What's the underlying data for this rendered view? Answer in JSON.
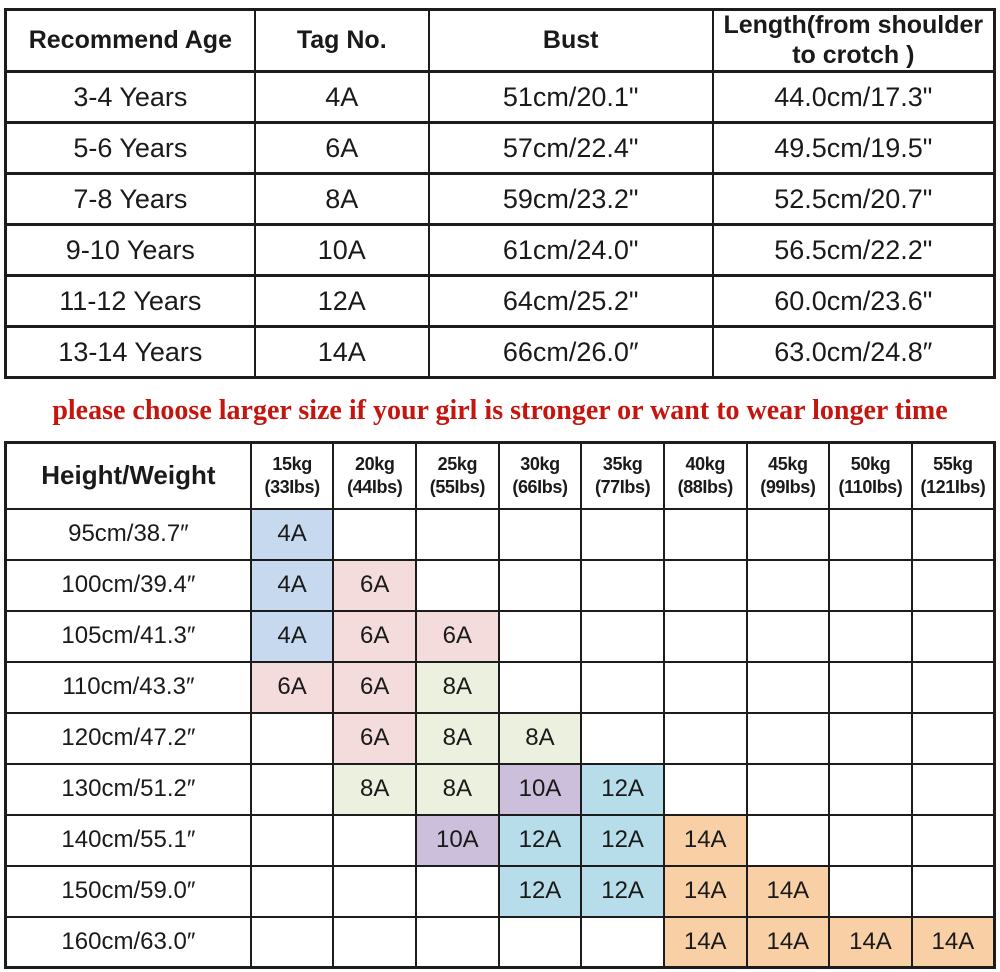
{
  "size_table": {
    "headers": [
      "Recommend Age",
      "Tag No.",
      "Bust",
      "Length(from shoulder to crotch )"
    ],
    "rows": [
      [
        "3-4 Years",
        "4A",
        "51cm/20.1\"",
        "44.0cm/17.3\""
      ],
      [
        "5-6 Years",
        "6A",
        "57cm/22.4\"",
        "49.5cm/19.5\""
      ],
      [
        "7-8 Years",
        "8A",
        "59cm/23.2\"",
        "52.5cm/20.7\""
      ],
      [
        "9-10 Years",
        "10A",
        "61cm/24.0\"",
        "56.5cm/22.2\""
      ],
      [
        "11-12 Years",
        "12A",
        "64cm/25.2\"",
        "60.0cm/23.6\""
      ],
      [
        "13-14 Years",
        "14A",
        "66cm/26.0″",
        "63.0cm/24.8″"
      ]
    ]
  },
  "note": {
    "text": "please choose larger size if your girl is stronger or want to wear longer time",
    "color": "#c4150f"
  },
  "matrix_table": {
    "corner_header": "Height/Weight",
    "weights": [
      {
        "kg": "15kg",
        "lbs": "(33Ibs)"
      },
      {
        "kg": "20kg",
        "lbs": "(44Ibs)"
      },
      {
        "kg": "25kg",
        "lbs": "(55Ibs)"
      },
      {
        "kg": "30kg",
        "lbs": "(66Ibs)"
      },
      {
        "kg": "35kg",
        "lbs": "(77Ibs)"
      },
      {
        "kg": "40kg",
        "lbs": "(88Ibs)"
      },
      {
        "kg": "45kg",
        "lbs": "(99Ibs)"
      },
      {
        "kg": "50kg",
        "lbs": "(110Ibs)"
      },
      {
        "kg": "55kg",
        "lbs": "(121Ibs)"
      }
    ],
    "rows": [
      {
        "height": "95cm/38.7″",
        "cells": [
          {
            "t": "4A",
            "c": "blue"
          },
          null,
          null,
          null,
          null,
          null,
          null,
          null,
          null
        ]
      },
      {
        "height": "100cm/39.4″",
        "cells": [
          {
            "t": "4A",
            "c": "blue"
          },
          {
            "t": "6A",
            "c": "pink"
          },
          null,
          null,
          null,
          null,
          null,
          null,
          null
        ]
      },
      {
        "height": "105cm/41.3″",
        "cells": [
          {
            "t": "4A",
            "c": "blue"
          },
          {
            "t": "6A",
            "c": "pink"
          },
          {
            "t": "6A",
            "c": "pink"
          },
          null,
          null,
          null,
          null,
          null,
          null
        ]
      },
      {
        "height": "110cm/43.3″",
        "cells": [
          {
            "t": "6A",
            "c": "pink"
          },
          {
            "t": "6A",
            "c": "pink"
          },
          {
            "t": "8A",
            "c": "green"
          },
          null,
          null,
          null,
          null,
          null,
          null
        ]
      },
      {
        "height": "120cm/47.2″",
        "cells": [
          null,
          {
            "t": "6A",
            "c": "pink"
          },
          {
            "t": "8A",
            "c": "green"
          },
          {
            "t": "8A",
            "c": "green"
          },
          null,
          null,
          null,
          null,
          null
        ]
      },
      {
        "height": "130cm/51.2″",
        "cells": [
          null,
          {
            "t": "8A",
            "c": "green"
          },
          {
            "t": "8A",
            "c": "green"
          },
          {
            "t": "10A",
            "c": "purple"
          },
          {
            "t": "12A",
            "c": "cyan"
          },
          null,
          null,
          null,
          null
        ]
      },
      {
        "height": "140cm/55.1″",
        "cells": [
          null,
          null,
          {
            "t": "10A",
            "c": "purple"
          },
          {
            "t": "12A",
            "c": "cyan"
          },
          {
            "t": "12A",
            "c": "cyan"
          },
          {
            "t": "14A",
            "c": "orange"
          },
          null,
          null,
          null
        ]
      },
      {
        "height": "150cm/59.0″",
        "cells": [
          null,
          null,
          null,
          {
            "t": "12A",
            "c": "cyan"
          },
          {
            "t": "12A",
            "c": "cyan"
          },
          {
            "t": "14A",
            "c": "orange"
          },
          {
            "t": "14A",
            "c": "orange"
          },
          null,
          null
        ]
      },
      {
        "height": "160cm/63.0″",
        "cells": [
          null,
          null,
          null,
          null,
          null,
          {
            "t": "14A",
            "c": "orange"
          },
          {
            "t": "14A",
            "c": "orange"
          },
          {
            "t": "14A",
            "c": "orange"
          },
          {
            "t": "14A",
            "c": "orange"
          }
        ]
      }
    ]
  },
  "colors": {
    "blue": "#c6d9ee",
    "pink": "#f4dbdc",
    "green": "#ebf1de",
    "purple": "#cbbfdb",
    "cyan": "#b6dde9",
    "orange": "#f9d0a6",
    "border": "#1c1c1c",
    "note_red": "#c4150f"
  },
  "chart_data": [
    {
      "type": "table",
      "title": "Recommend age size table",
      "columns": [
        "Recommend Age",
        "Tag No.",
        "Bust",
        "Length(from shoulder to crotch )"
      ],
      "rows": [
        [
          "3-4 Years",
          "4A",
          "51cm/20.1\"",
          "44.0cm/17.3\""
        ],
        [
          "5-6 Years",
          "6A",
          "57cm/22.4\"",
          "49.5cm/19.5\""
        ],
        [
          "7-8 Years",
          "8A",
          "59cm/23.2\"",
          "52.5cm/20.7\""
        ],
        [
          "9-10 Years",
          "10A",
          "61cm/24.0\"",
          "56.5cm/22.2\""
        ],
        [
          "11-12 Years",
          "12A",
          "64cm/25.2\"",
          "60.0cm/23.6\""
        ],
        [
          "13-14 Years",
          "14A",
          "66cm/26.0″",
          "63.0cm/24.8″"
        ]
      ]
    },
    {
      "type": "table",
      "title": "Height/Weight tag matrix",
      "columns": [
        "Height/Weight",
        "15kg (33Ibs)",
        "20kg (44Ibs)",
        "25kg (55Ibs)",
        "30kg (66Ibs)",
        "35kg (77Ibs)",
        "40kg (88Ibs)",
        "45kg (99Ibs)",
        "50kg (110Ibs)",
        "55kg (121Ibs)"
      ],
      "rows": [
        [
          "95cm/38.7″",
          "4A",
          "",
          "",
          "",
          "",
          "",
          "",
          "",
          ""
        ],
        [
          "100cm/39.4″",
          "4A",
          "6A",
          "",
          "",
          "",
          "",
          "",
          "",
          ""
        ],
        [
          "105cm/41.3″",
          "4A",
          "6A",
          "6A",
          "",
          "",
          "",
          "",
          "",
          ""
        ],
        [
          "110cm/43.3″",
          "6A",
          "6A",
          "8A",
          "",
          "",
          "",
          "",
          "",
          ""
        ],
        [
          "120cm/47.2″",
          "",
          "6A",
          "8A",
          "8A",
          "",
          "",
          "",
          "",
          ""
        ],
        [
          "130cm/51.2″",
          "",
          "8A",
          "8A",
          "10A",
          "12A",
          "",
          "",
          "",
          ""
        ],
        [
          "140cm/55.1″",
          "",
          "",
          "10A",
          "12A",
          "12A",
          "14A",
          "",
          "",
          ""
        ],
        [
          "150cm/59.0″",
          "",
          "",
          "",
          "12A",
          "12A",
          "14A",
          "14A",
          "",
          ""
        ],
        [
          "160cm/63.0″",
          "",
          "",
          "",
          "",
          "",
          "14A",
          "14A",
          "14A",
          "14A"
        ]
      ]
    }
  ]
}
